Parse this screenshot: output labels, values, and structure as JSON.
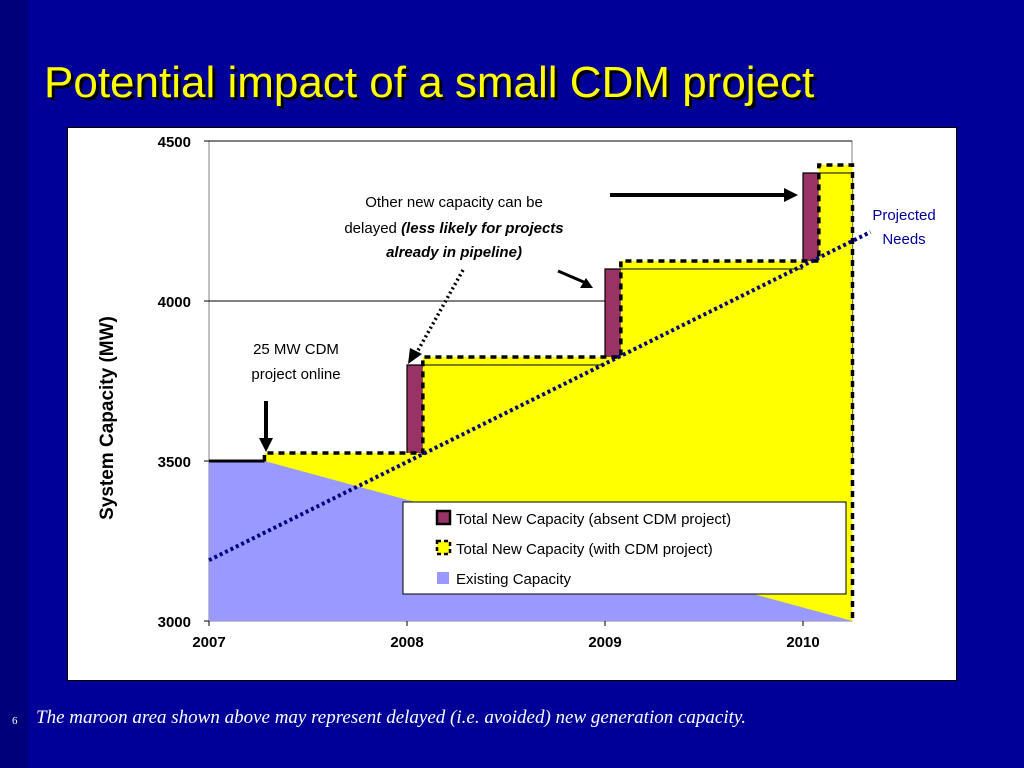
{
  "slide": {
    "title": "Potential impact of a small CDM project",
    "slide_number": "6",
    "footnote": "The maroon area shown above may represent delayed (i.e. avoided) new generation capacity."
  },
  "colors": {
    "background": "#000099",
    "title": "#ffff00",
    "existing": "#9999ff",
    "absent_cdm": "#993366",
    "with_cdm": "#ffff00",
    "projected_needs": "#000080",
    "projected_label": "#000099"
  },
  "chart_data": {
    "type": "area",
    "ylabel": "System Capacity (MW)",
    "xlabel": "",
    "ylim": [
      3000,
      4500
    ],
    "xlim": [
      2007,
      2010.25
    ],
    "x_ticks": [
      "2007",
      "2008",
      "2009",
      "2010"
    ],
    "y_ticks": [
      "3000",
      "3500",
      "4000",
      "4500"
    ],
    "gridlines": "horizontal",
    "legend_position": "bottom-right inside plot",
    "legend": [
      {
        "key": "absent",
        "label": "Total New Capacity (absent CDM project)"
      },
      {
        "key": "with",
        "label": "Total New Capacity (with CDM project)"
      },
      {
        "key": "existing",
        "label": "Existing Capacity"
      }
    ],
    "existing_capacity": {
      "value": 3500,
      "from": 2007,
      "to": 2010.25
    },
    "absent_cdm_step": [
      {
        "x": 2007,
        "y": 3500
      },
      {
        "x": 2008,
        "y": 3500
      },
      {
        "x": 2008,
        "y": 3800
      },
      {
        "x": 2009,
        "y": 3800
      },
      {
        "x": 2009,
        "y": 4100
      },
      {
        "x": 2010,
        "y": 4100
      },
      {
        "x": 2010,
        "y": 4400
      },
      {
        "x": 2010.25,
        "y": 4400
      }
    ],
    "with_cdm_step": [
      {
        "x": 2007.28,
        "y": 3500
      },
      {
        "x": 2007.28,
        "y": 3525
      },
      {
        "x": 2008.08,
        "y": 3525
      },
      {
        "x": 2008.08,
        "y": 3825
      },
      {
        "x": 2009.08,
        "y": 3825
      },
      {
        "x": 2009.08,
        "y": 4125
      },
      {
        "x": 2010.08,
        "y": 4125
      },
      {
        "x": 2010.08,
        "y": 4425
      },
      {
        "x": 2010.25,
        "y": 4425
      },
      {
        "x": 2010.25,
        "y": 3000
      }
    ],
    "projected_needs": [
      {
        "x": 2007,
        "y": 3190
      },
      {
        "x": 2010.25,
        "y": 4200
      }
    ],
    "annotations": {
      "cdm_online": [
        "25 MW CDM",
        "project online"
      ],
      "delayed_line1": "Other new capacity can be",
      "delayed_line2_plain": "delayed ",
      "delayed_line2_italic": "(less likely for projects",
      "delayed_line3_italic": "already in pipeline)",
      "projected_label": [
        "Projected",
        "Needs"
      ]
    }
  }
}
